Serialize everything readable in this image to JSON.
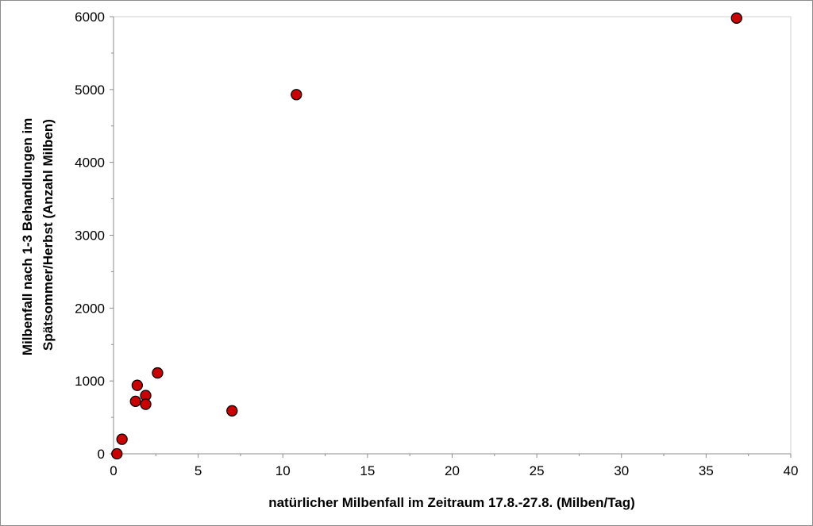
{
  "chart_data": {
    "type": "scatter",
    "title": "",
    "xlabel": "natürlicher Milbenfall im Zeitraum 17.8.-27.8. (Milben/Tag)",
    "ylabel_lines": [
      "Milbenfall nach 1-3 Behandlungen im",
      "Spätsommer/Herbst (Anzahl Milben)"
    ],
    "xlim": [
      0,
      40
    ],
    "ylim": [
      0,
      6000
    ],
    "x_ticks": [
      0,
      5,
      10,
      15,
      20,
      25,
      30,
      35,
      40
    ],
    "y_ticks": [
      0,
      1000,
      2000,
      3000,
      4000,
      5000,
      6000
    ],
    "grid": false,
    "legend": "none",
    "marker_color": "#cc0000",
    "marker_edge_color": "#000000",
    "points": [
      {
        "x": 0.2,
        "y": 0
      },
      {
        "x": 0.5,
        "y": 200
      },
      {
        "x": 1.3,
        "y": 720
      },
      {
        "x": 1.4,
        "y": 940
      },
      {
        "x": 1.9,
        "y": 800
      },
      {
        "x": 1.9,
        "y": 680
      },
      {
        "x": 2.6,
        "y": 1110
      },
      {
        "x": 7.0,
        "y": 590
      },
      {
        "x": 10.8,
        "y": 4930
      },
      {
        "x": 36.8,
        "y": 5980
      }
    ]
  }
}
